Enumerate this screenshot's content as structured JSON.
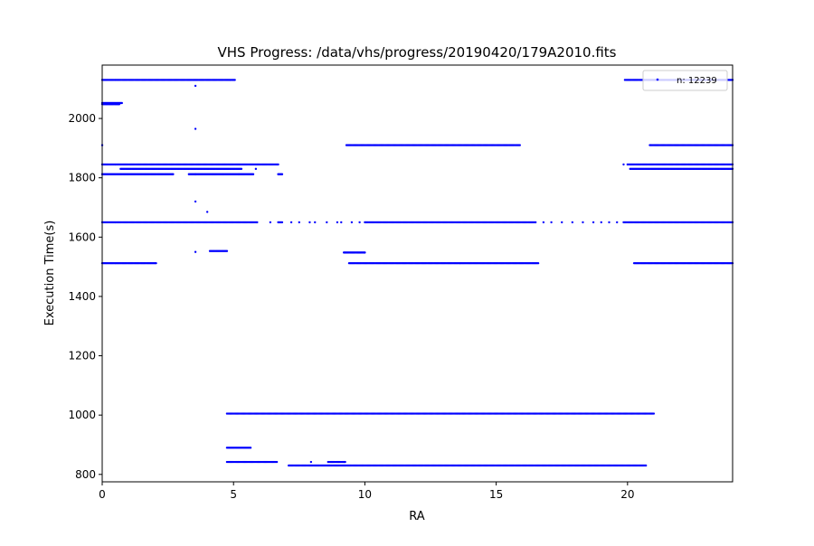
{
  "chart_data": {
    "type": "scatter",
    "title": "VHS Progress: /data/vhs/progress/20190420/179A2010.fits",
    "xlabel": "RA",
    "ylabel": "Execution Time(s)",
    "xlim": [
      0,
      24
    ],
    "ylim": [
      775,
      2180
    ],
    "x_ticks": [
      0,
      5,
      10,
      15,
      20
    ],
    "x_tick_labels": [
      "0",
      "5",
      "10",
      "15",
      "20"
    ],
    "y_ticks": [
      800,
      1000,
      1200,
      1400,
      1600,
      1800,
      2000
    ],
    "y_tick_labels": [
      "800",
      "1000",
      "1200",
      "1400",
      "1600",
      "1800",
      "2000"
    ],
    "grid": false,
    "legend": {
      "position": "top-right",
      "label": "n: 12239"
    },
    "series": [
      {
        "name": "n: 12239",
        "color": "#0000ff",
        "runs": [
          {
            "y": 2130,
            "x": [
              0.0,
              5.05
            ]
          },
          {
            "y": 2130,
            "x": [
              19.9,
              24.0
            ]
          },
          {
            "y": 2052,
            "x": [
              0.0,
              0.75
            ]
          },
          {
            "y": 2048,
            "x": [
              0.0,
              0.65
            ]
          },
          {
            "y": 1910,
            "x": [
              9.3,
              15.9
            ]
          },
          {
            "y": 1910,
            "x": [
              20.85,
              24.0
            ]
          },
          {
            "y": 1845,
            "x": [
              0.0,
              6.7
            ]
          },
          {
            "y": 1845,
            "x": [
              20.0,
              24.0
            ]
          },
          {
            "y": 1830,
            "x": [
              0.7,
              5.3
            ]
          },
          {
            "y": 1830,
            "x": [
              20.1,
              24.0
            ]
          },
          {
            "y": 1812,
            "x": [
              0.0,
              2.7
            ]
          },
          {
            "y": 1812,
            "x": [
              3.3,
              5.2
            ]
          },
          {
            "y": 1812,
            "x": [
              5.2,
              5.75
            ]
          },
          {
            "y": 1812,
            "x": [
              6.7,
              6.85
            ]
          },
          {
            "y": 1650,
            "x": [
              0.0,
              5.9
            ]
          },
          {
            "y": 1650,
            "x": [
              6.7,
              6.85
            ]
          },
          {
            "y": 1650,
            "x": [
              10.0,
              16.5
            ]
          },
          {
            "y": 1650,
            "x": [
              19.85,
              24.0
            ]
          },
          {
            "y": 1548,
            "x": [
              9.2,
              10.0
            ]
          },
          {
            "y": 1553,
            "x": [
              4.1,
              4.75
            ]
          },
          {
            "y": 1512,
            "x": [
              0.0,
              2.05
            ]
          },
          {
            "y": 1512,
            "x": [
              9.4,
              16.6
            ]
          },
          {
            "y": 1512,
            "x": [
              20.25,
              24.0
            ]
          },
          {
            "y": 1005,
            "x": [
              4.75,
              21.0
            ]
          },
          {
            "y": 890,
            "x": [
              4.75,
              5.65
            ]
          },
          {
            "y": 842,
            "x": [
              4.75,
              6.65
            ]
          },
          {
            "y": 842,
            "x": [
              8.6,
              9.25
            ]
          },
          {
            "y": 830,
            "x": [
              7.1,
              20.7
            ]
          }
        ],
        "points": [
          {
            "x": 3.55,
            "y": 2110
          },
          {
            "x": 3.55,
            "y": 1965
          },
          {
            "x": 3.55,
            "y": 1720
          },
          {
            "x": 3.55,
            "y": 1550
          },
          {
            "x": 4.0,
            "y": 1685
          },
          {
            "x": 3.55,
            "y": 1812
          },
          {
            "x": 5.85,
            "y": 1830
          },
          {
            "x": 6.4,
            "y": 1650
          },
          {
            "x": 7.2,
            "y": 1650
          },
          {
            "x": 7.5,
            "y": 1650
          },
          {
            "x": 7.9,
            "y": 1650
          },
          {
            "x": 8.1,
            "y": 1650
          },
          {
            "x": 8.55,
            "y": 1650
          },
          {
            "x": 8.95,
            "y": 1650
          },
          {
            "x": 9.1,
            "y": 1650
          },
          {
            "x": 9.5,
            "y": 1650
          },
          {
            "x": 9.8,
            "y": 1650
          },
          {
            "x": 16.8,
            "y": 1650
          },
          {
            "x": 17.1,
            "y": 1650
          },
          {
            "x": 17.5,
            "y": 1650
          },
          {
            "x": 17.9,
            "y": 1650
          },
          {
            "x": 18.3,
            "y": 1650
          },
          {
            "x": 18.7,
            "y": 1650
          },
          {
            "x": 19.0,
            "y": 1650
          },
          {
            "x": 19.3,
            "y": 1650
          },
          {
            "x": 19.6,
            "y": 1650
          },
          {
            "x": 19.85,
            "y": 1845
          },
          {
            "x": 7.95,
            "y": 842
          },
          {
            "x": 0.0,
            "y": 1910
          }
        ]
      }
    ]
  }
}
